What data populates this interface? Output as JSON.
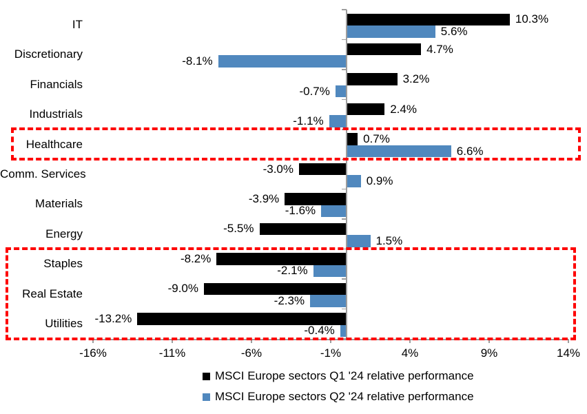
{
  "chart_data": {
    "type": "bar",
    "orientation": "horizontal",
    "title": "",
    "categories": [
      "IT",
      "Discretionary",
      "Financials",
      "Industrials",
      "Healthcare",
      "Comm. Services",
      "Materials",
      "Energy",
      "Staples",
      "Real Estate",
      "Utilities"
    ],
    "series": [
      {
        "name": "MSCI Europe sectors Q1 '24 relative performance",
        "color": "#000000",
        "values": [
          10.3,
          4.7,
          3.2,
          2.4,
          0.7,
          -3.0,
          -3.9,
          -5.5,
          -8.2,
          -9.0,
          -13.2
        ],
        "labels": [
          "10.3%",
          "4.7%",
          "3.2%",
          "2.4%",
          "0.7%",
          "-3.0%",
          "-3.9%",
          "-5.5%",
          "-8.2%",
          "-9.0%",
          "-13.2%"
        ]
      },
      {
        "name": "MSCI Europe sectors Q2 '24 relative performance",
        "color": "#5088be",
        "values": [
          5.6,
          -8.1,
          -0.7,
          -1.1,
          6.6,
          0.9,
          -1.6,
          1.5,
          -2.1,
          -2.3,
          -0.4
        ],
        "labels": [
          "5.6%",
          "-8.1%",
          "-0.7%",
          "-1.1%",
          "6.6%",
          "0.9%",
          "-1.6%",
          "1.5%",
          "-2.1%",
          "-2.3%",
          "-0.4%"
        ]
      }
    ],
    "x_axis": {
      "tick_labels": [
        "-16%",
        "-11%",
        "-6%",
        "-1%",
        "4%",
        "9%",
        "14%"
      ],
      "tick_values": [
        -16,
        -11,
        -6,
        -1,
        4,
        9,
        14
      ],
      "min": -16,
      "max": 14,
      "grid": false
    },
    "legend_position": "bottom",
    "highlight_color": "#fe0000",
    "highlights": [
      {
        "sectors": [
          "Healthcare"
        ]
      },
      {
        "sectors": [
          "Staples",
          "Real Estate",
          "Utilities"
        ]
      }
    ]
  }
}
